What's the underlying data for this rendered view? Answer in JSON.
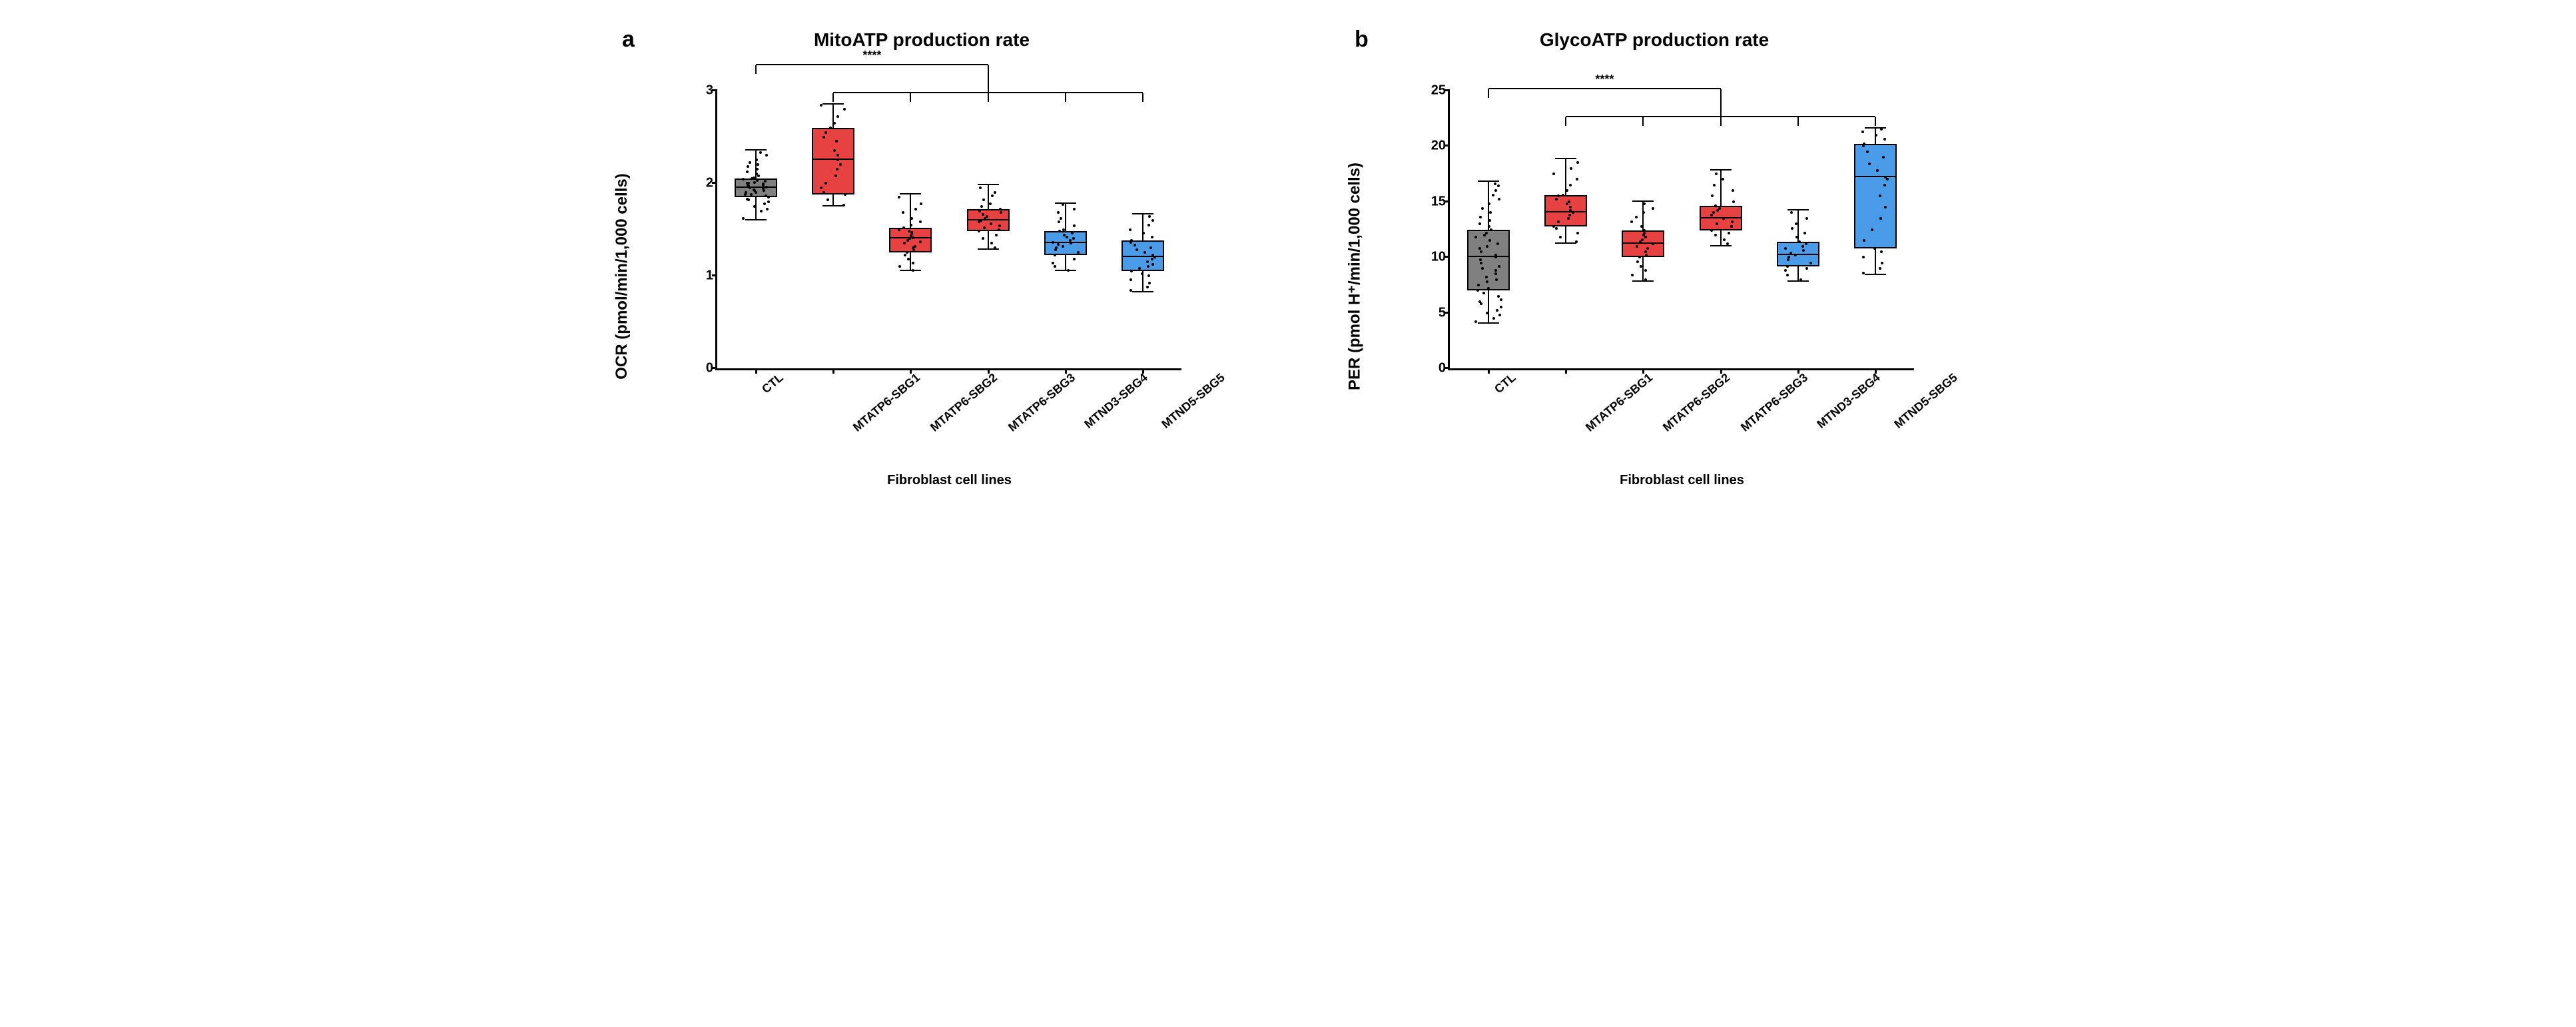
{
  "panel_a": {
    "panel_label": "a",
    "title": "MitoATP production rate",
    "type": "boxplot",
    "ylabel": "OCR (pmol/min/1,000 cells)",
    "xlabel": "Fibroblast cell lines",
    "ylim": [
      0,
      3
    ],
    "ytick_step": 1,
    "yticks": [
      0,
      1,
      2,
      3
    ],
    "categories": [
      "CTL",
      "MTATP6-SBG1",
      "MTATP6-SBG2",
      "MTATP6-SBG3",
      "MTND3-SBG4",
      "MTND5-SBG5"
    ],
    "box_colors": [
      "#808080",
      "#e84141",
      "#e84141",
      "#e84141",
      "#4a9be8",
      "#4a9be8"
    ],
    "box_width": 0.55,
    "background_color": "#ffffff",
    "axis_color": "#000000",
    "significance": "****",
    "series": [
      {
        "median": 1.95,
        "q1": 1.85,
        "q3": 2.05,
        "min": 1.6,
        "max": 2.35,
        "points": [
          1.62,
          1.7,
          1.72,
          1.75,
          1.78,
          1.8,
          1.82,
          1.83,
          1.85,
          1.86,
          1.88,
          1.88,
          1.9,
          1.9,
          1.92,
          1.92,
          1.93,
          1.94,
          1.95,
          1.95,
          1.96,
          1.97,
          1.98,
          1.98,
          1.99,
          2.0,
          2.0,
          2.01,
          2.02,
          2.03,
          2.04,
          2.05,
          2.06,
          2.08,
          2.1,
          2.12,
          2.15,
          2.18,
          2.2,
          2.22,
          2.25,
          2.3,
          2.33
        ]
      },
      {
        "median": 2.25,
        "q1": 1.88,
        "q3": 2.6,
        "min": 1.75,
        "max": 2.85,
        "points": [
          1.76,
          1.82,
          1.88,
          1.9,
          1.95,
          2.0,
          2.08,
          2.15,
          2.2,
          2.25,
          2.3,
          2.35,
          2.45,
          2.5,
          2.55,
          2.6,
          2.65,
          2.72,
          2.8,
          2.84
        ]
      },
      {
        "median": 1.4,
        "q1": 1.25,
        "q3": 1.52,
        "min": 1.05,
        "max": 1.88,
        "points": [
          1.06,
          1.1,
          1.14,
          1.18,
          1.22,
          1.25,
          1.28,
          1.3,
          1.32,
          1.35,
          1.37,
          1.38,
          1.4,
          1.41,
          1.43,
          1.45,
          1.47,
          1.48,
          1.5,
          1.52,
          1.55,
          1.58,
          1.62,
          1.68,
          1.72,
          1.78,
          1.85
        ]
      },
      {
        "median": 1.6,
        "q1": 1.48,
        "q3": 1.72,
        "min": 1.28,
        "max": 1.98,
        "points": [
          1.3,
          1.35,
          1.4,
          1.44,
          1.48,
          1.5,
          1.52,
          1.54,
          1.56,
          1.58,
          1.6,
          1.62,
          1.64,
          1.66,
          1.68,
          1.7,
          1.72,
          1.75,
          1.78,
          1.82,
          1.86,
          1.9,
          1.95
        ]
      },
      {
        "median": 1.35,
        "q1": 1.22,
        "q3": 1.48,
        "min": 1.05,
        "max": 1.78,
        "points": [
          1.06,
          1.1,
          1.14,
          1.18,
          1.22,
          1.25,
          1.28,
          1.3,
          1.32,
          1.34,
          1.35,
          1.36,
          1.38,
          1.4,
          1.42,
          1.44,
          1.46,
          1.48,
          1.5,
          1.54,
          1.58,
          1.62,
          1.68,
          1.72,
          1.77
        ]
      },
      {
        "median": 1.2,
        "q1": 1.05,
        "q3": 1.38,
        "min": 0.82,
        "max": 1.66,
        "points": [
          0.84,
          0.88,
          0.92,
          0.96,
          1.0,
          1.02,
          1.05,
          1.08,
          1.1,
          1.12,
          1.15,
          1.18,
          1.2,
          1.22,
          1.25,
          1.28,
          1.3,
          1.33,
          1.36,
          1.38,
          1.42,
          1.46,
          1.5,
          1.55,
          1.6,
          1.64
        ]
      }
    ]
  },
  "panel_b": {
    "panel_label": "b",
    "title": "GlycoATP production rate",
    "type": "boxplot",
    "ylabel": "PER (pmol H⁺/min/1,000 cells)",
    "xlabel": "Fibroblast cell lines",
    "ylim": [
      0,
      25
    ],
    "ytick_step": 5,
    "yticks": [
      0,
      5,
      10,
      15,
      20,
      25
    ],
    "categories": [
      "CTL",
      "MTATP6-SBG1",
      "MTATP6-SBG2",
      "MTATP6-SBG3",
      "MTND3-SBG4",
      "MTND5-SBG5"
    ],
    "box_colors": [
      "#808080",
      "#e84141",
      "#e84141",
      "#e84141",
      "#4a9be8",
      "#4a9be8"
    ],
    "box_width": 0.55,
    "background_color": "#ffffff",
    "axis_color": "#000000",
    "significance": "****",
    "series": [
      {
        "median": 10.0,
        "q1": 7.0,
        "q3": 12.5,
        "min": 4.0,
        "max": 16.8,
        "points": [
          4.2,
          4.5,
          4.8,
          5.0,
          5.2,
          5.5,
          5.8,
          6.0,
          6.2,
          6.5,
          6.8,
          7.0,
          7.2,
          7.5,
          7.8,
          8.0,
          8.2,
          8.5,
          8.8,
          9.0,
          9.2,
          9.5,
          9.8,
          10.0,
          10.2,
          10.5,
          10.8,
          11.0,
          11.2,
          11.5,
          11.8,
          12.0,
          12.2,
          12.5,
          12.8,
          13.0,
          13.3,
          13.6,
          14.0,
          14.4,
          14.8,
          15.2,
          15.6,
          16.0,
          16.4,
          16.6
        ]
      },
      {
        "median": 14.0,
        "q1": 12.8,
        "q3": 15.6,
        "min": 11.2,
        "max": 18.8,
        "points": [
          11.4,
          11.8,
          12.2,
          12.6,
          12.8,
          13.2,
          13.5,
          13.8,
          14.0,
          14.2,
          14.5,
          14.8,
          15.0,
          15.2,
          15.5,
          15.6,
          16.0,
          16.5,
          17.0,
          17.5,
          18.0,
          18.5
        ]
      },
      {
        "median": 11.2,
        "q1": 10.0,
        "q3": 12.4,
        "min": 7.8,
        "max": 15.0,
        "points": [
          8.0,
          8.4,
          8.8,
          9.2,
          9.6,
          10.0,
          10.2,
          10.5,
          10.8,
          11.0,
          11.2,
          11.4,
          11.6,
          11.8,
          12.0,
          12.2,
          12.4,
          12.8,
          13.2,
          13.6,
          14.0,
          14.4,
          14.8
        ]
      },
      {
        "median": 13.5,
        "q1": 12.4,
        "q3": 14.6,
        "min": 11.0,
        "max": 17.8,
        "points": [
          11.2,
          11.6,
          12.0,
          12.2,
          12.4,
          12.8,
          13.0,
          13.2,
          13.5,
          13.8,
          14.0,
          14.2,
          14.4,
          14.6,
          15.0,
          15.5,
          16.0,
          16.5,
          17.0,
          17.5
        ]
      },
      {
        "median": 10.2,
        "q1": 9.2,
        "q3": 11.4,
        "min": 7.8,
        "max": 14.2,
        "points": [
          8.0,
          8.4,
          8.8,
          9.0,
          9.2,
          9.5,
          9.8,
          10.0,
          10.2,
          10.4,
          10.6,
          10.8,
          11.0,
          11.2,
          11.4,
          11.8,
          12.2,
          12.6,
          13.0,
          13.5,
          14.0
        ]
      },
      {
        "median": 17.2,
        "q1": 10.8,
        "q3": 20.2,
        "min": 8.4,
        "max": 21.6,
        "points": [
          8.6,
          9.0,
          9.5,
          10.0,
          10.5,
          10.8,
          11.5,
          12.5,
          13.5,
          14.5,
          15.5,
          16.5,
          17.0,
          17.2,
          17.8,
          18.4,
          19.0,
          19.5,
          20.0,
          20.2,
          20.6,
          21.0,
          21.3,
          21.5
        ]
      }
    ]
  },
  "common": {
    "title_fontsize": 28,
    "label_fontsize": 24,
    "tick_fontsize": 20,
    "xtick_fontsize": 18,
    "xtick_rotation_deg": 40,
    "font_weight": "bold"
  }
}
